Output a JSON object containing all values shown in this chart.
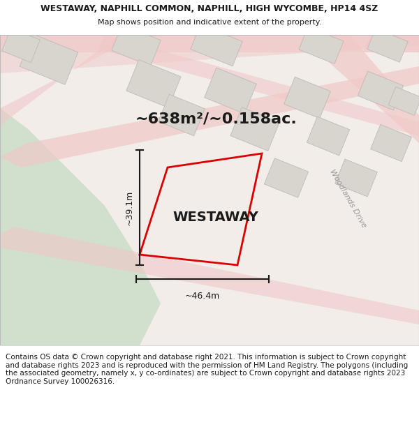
{
  "title": "WESTAWAY, NAPHILL COMMON, NAPHILL, HIGH WYCOMBE, HP14 4SZ",
  "subtitle": "Map shows position and indicative extent of the property.",
  "footer": "Contains OS data © Crown copyright and database right 2021. This information is subject to Crown copyright and database rights 2023 and is reproduced with the permission of HM Land Registry. The polygons (including the associated geometry, namely x, y co-ordinates) are subject to Crown copyright and database rights 2023 Ordnance Survey 100026316.",
  "property_name": "WESTAWAY",
  "area_label": "~638m²/~0.158ac.",
  "width_label": "~46.4m",
  "height_label": "~39.1m",
  "road_label": "Woodlands Drive",
  "map_bg": "#f2ede8",
  "road_color": "#f0c8c8",
  "building_color": "#d8d4ce",
  "building_edge": "#c0bab4",
  "green_color": "#d0e0cc",
  "plot_color": "#dd0000",
  "dim_line_color": "#1a1a1a",
  "white_area": "#ffffff",
  "title_fontsize": 9.0,
  "subtitle_fontsize": 8.0,
  "footer_fontsize": 7.5,
  "area_fontsize": 16,
  "prop_name_fontsize": 14,
  "road_label_fontsize": 8,
  "dim_fontsize": 9
}
